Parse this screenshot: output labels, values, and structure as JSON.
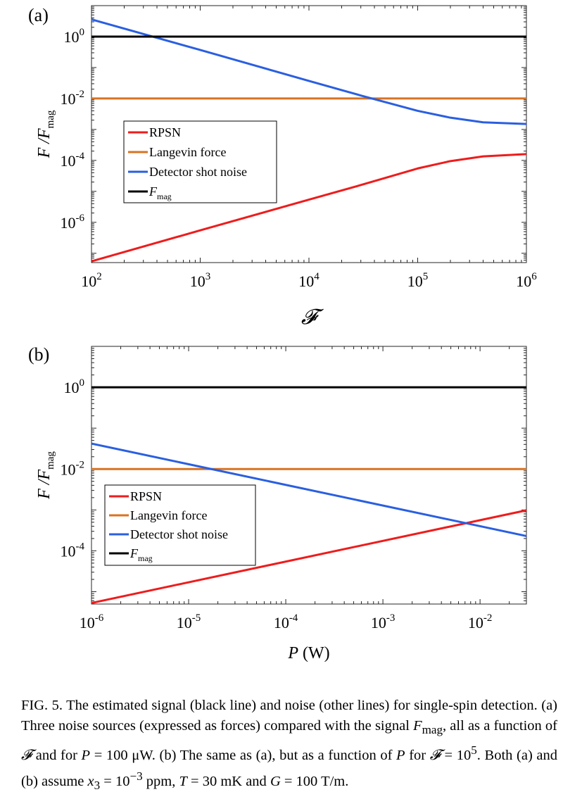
{
  "colors": {
    "rpsn": "#ee1c1c",
    "langevin": "#d87322",
    "shot": "#2a5fe0",
    "fmag": "#000000"
  },
  "chart_data": [
    {
      "type": "line",
      "panel_label": "(a)",
      "xscale": "log",
      "yscale": "log",
      "xlim": [
        100,
        1000000
      ],
      "ylim": [
        5e-08,
        10
      ],
      "xlabel": "𝓕",
      "ylabel": {
        "main": "F /F",
        "sub": "mag"
      },
      "xticks": [
        {
          "v": 100,
          "base": "10",
          "exp": "2"
        },
        {
          "v": 1000,
          "base": "10",
          "exp": "3"
        },
        {
          "v": 10000,
          "base": "10",
          "exp": "4"
        },
        {
          "v": 100000,
          "base": "10",
          "exp": "5"
        },
        {
          "v": 1000000,
          "base": "10",
          "exp": "6"
        }
      ],
      "yticks": [
        {
          "v": 1,
          "base": "10",
          "exp": "0"
        },
        {
          "v": 0.01,
          "base": "10",
          "exp": "-2"
        },
        {
          "v": 0.0001,
          "base": "10",
          "exp": "-4"
        },
        {
          "v": 1e-06,
          "base": "10",
          "exp": "-6"
        }
      ],
      "legend": "left",
      "series": [
        {
          "name": "RPSN",
          "color_key": "rpsn",
          "points": [
            [
              100,
              5.5e-08
            ],
            [
              1000,
              5.5e-07
            ],
            [
              10000,
              5.4e-06
            ],
            [
              30000,
              1.6e-05
            ],
            [
              100000,
              5.5e-05
            ],
            [
              200000,
              9.5e-05
            ],
            [
              400000,
              0.000135
            ],
            [
              1000000,
              0.00016
            ]
          ]
        },
        {
          "name": "Langevin force",
          "color_key": "langevin",
          "points": [
            [
              100,
              0.01
            ],
            [
              1000000,
              0.01
            ]
          ]
        },
        {
          "name": "Detector shot noise",
          "color_key": "shot",
          "points": [
            [
              100,
              3.6
            ],
            [
              1000,
              0.37
            ],
            [
              10000,
              0.037
            ],
            [
              30000,
              0.0125
            ],
            [
              100000,
              0.004
            ],
            [
              200000,
              0.0024
            ],
            [
              400000,
              0.0017
            ],
            [
              1000000,
              0.0015
            ]
          ]
        },
        {
          "name": "F",
          "name_sub": "mag",
          "color_key": "fmag",
          "points": [
            [
              100,
              1
            ],
            [
              1000000,
              1
            ]
          ]
        }
      ]
    },
    {
      "type": "line",
      "panel_label": "(b)",
      "xscale": "log",
      "yscale": "log",
      "xlim": [
        1e-06,
        0.03
      ],
      "ylim": [
        5e-06,
        10
      ],
      "xlabel": "P (W)",
      "ylabel": {
        "main": "F /F",
        "sub": "mag"
      },
      "xticks": [
        {
          "v": 1e-06,
          "base": "10",
          "exp": "-6"
        },
        {
          "v": 1e-05,
          "base": "10",
          "exp": "-5"
        },
        {
          "v": 0.0001,
          "base": "10",
          "exp": "-4"
        },
        {
          "v": 0.001,
          "base": "10",
          "exp": "-3"
        },
        {
          "v": 0.01,
          "base": "10",
          "exp": "-2"
        }
      ],
      "yticks": [
        {
          "v": 1,
          "base": "10",
          "exp": "0"
        },
        {
          "v": 0.01,
          "base": "10",
          "exp": "-2"
        },
        {
          "v": 0.0001,
          "base": "10",
          "exp": "-4"
        }
      ],
      "legend": "left",
      "series": [
        {
          "name": "RPSN",
          "color_key": "rpsn",
          "points": [
            [
              1e-06,
              5.3e-06
            ],
            [
              0.03,
              0.00098
            ]
          ]
        },
        {
          "name": "Langevin force",
          "color_key": "langevin",
          "points": [
            [
              1e-06,
              0.01
            ],
            [
              0.03,
              0.01
            ]
          ]
        },
        {
          "name": "Detector shot noise",
          "color_key": "shot",
          "points": [
            [
              1e-06,
              0.042
            ],
            [
              0.03,
              0.00023
            ]
          ]
        },
        {
          "name": "F",
          "name_sub": "mag",
          "color_key": "fmag",
          "points": [
            [
              1e-06,
              1
            ],
            [
              0.03,
              1
            ]
          ]
        }
      ]
    }
  ],
  "caption": {
    "part1": "FIG. 5. The estimated signal (black line) and noise (other lines) for single-spin detection. (a) Three noise sources (expressed as forces) compared with the signal ",
    "fmag_main": "F",
    "fmag_sub": "mag",
    "part2": ", all as a function of ",
    "script_f1": "𝓕",
    "part3": " and for ",
    "p1": "P",
    "part4": " = 100 μW. (b) The same as (a), but as a function of ",
    "p2": "P",
    "part5": " for ",
    "script_f2": "𝓕",
    "part6": " = 10",
    "exp5": "5",
    "part7": ". Both (a) and (b) assume ",
    "x3_main": "x",
    "x3_sub": "3",
    "part8": " = 10",
    "exp_m3": "−3",
    "part9": " ppm, ",
    "t_var": "T",
    "part10": " = 30 mK and ",
    "g_var": "G",
    "part11": " = 100 T/m."
  }
}
